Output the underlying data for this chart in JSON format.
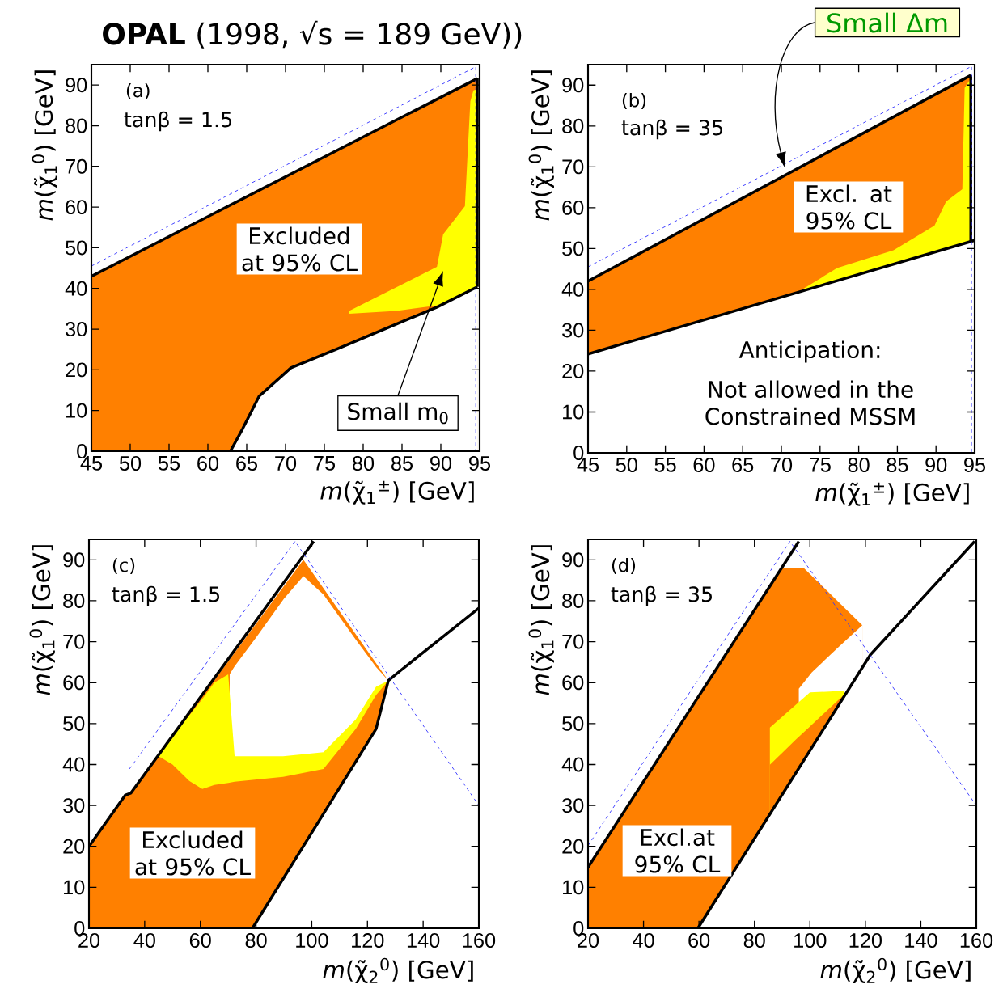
{
  "chart_data": [
    {
      "type": "area",
      "title": "**OPAL** (1998, √s = 189 GeV))",
      "xlabel": "*m*(χ̃$_{1}$$^{±}$) [GeV]",
      "ylabel": "*m*(χ̃$_{1}$$^{0}$) [GeV]",
      "xlim": [
        45,
        95
      ],
      "ylim": [
        0,
        95
      ],
      "xticks": [
        45,
        50,
        55,
        60,
        65,
        70,
        75,
        80,
        85,
        90,
        95
      ],
      "yticks": [
        0,
        10,
        20,
        30,
        40,
        50,
        60,
        70,
        80,
        90
      ],
      "series": [
        {
          "color": "#ff8000",
          "line_style": "solid",
          "x": [
            45,
            94.7
          ],
          "values": [
            43,
            91.6
          ]
        },
        {
          "color": "#ffff00",
          "x": [
            78.2,
            89.5,
            90.3,
            93.1,
            93.8,
            94.2,
            94.7
          ],
          "values": [
            34.5,
            45.3,
            53.3,
            60.2,
            86,
            88.7,
            89
          ]
        },
        {
          "color": "#ff8000",
          "x": [
            78.2,
            84.3,
            89.5,
            90.3,
            93.1,
            93.8,
            94.2,
            94.7
          ],
          "values": [
            33.8,
            34.5,
            35.8,
            36.2,
            38.5,
            39.5,
            39.8,
            40.4
          ]
        },
        {
          "color": "#ffffff",
          "line_style": "solid",
          "x": [
            62.9,
            64.5,
            66.6,
            70.7,
            77,
            83.2,
            89.5,
            94.7
          ],
          "values": [
            0,
            5.6,
            13.5,
            20.5,
            25.4,
            30.4,
            35.4,
            40.4
          ]
        },
        {
          "type": "line",
          "color": "#000000",
          "line_style": "solid",
          "x": [
            94.7,
            94.7
          ],
          "values": [
            40.4,
            91.6
          ]
        },
        {
          "type": "line",
          "color": "#3333ff",
          "line_style": "dashed",
          "x": [
            45,
            94.5,
            94.5
          ],
          "values": [
            45.5,
            94.5,
            0
          ]
        }
      ],
      "annotations": [
        "(a)",
        "tanβ = 1.5",
        "Excluded at 95% CL",
        "Small m$_{0}$"
      ]
    },
    {
      "type": "area",
      "xlabel": "*m*(χ̃$_{1}$$^{±}$) [GeV]",
      "ylabel": "*m*(χ̃$_{1}$$^{0}$) [GeV]",
      "xlim": [
        45,
        95
      ],
      "ylim": [
        0,
        95
      ],
      "xticks": [
        45,
        50,
        55,
        60,
        65,
        70,
        75,
        80,
        85,
        90,
        95
      ],
      "yticks": [
        0,
        10,
        20,
        30,
        40,
        50,
        60,
        70,
        80,
        90
      ],
      "series": [
        {
          "color": "#ff8000",
          "line_style": "solid",
          "x": [
            45,
            94.5
          ],
          "values": [
            42,
            92.4
          ]
        },
        {
          "color": "#ffff00",
          "x": [
            72,
            77.2,
            84.5,
            89.8,
            91.3,
            93.4,
            93.7,
            94.5
          ],
          "values": [
            39.2,
            45.2,
            49.6,
            55.6,
            61.5,
            64.5,
            89.3,
            91.7
          ]
        },
        {
          "color": "#ffffff",
          "line_style": "solid",
          "x": [
            45,
            95
          ],
          "values": [
            24.2,
            52
          ]
        },
        {
          "type": "line",
          "color": "#000000",
          "line_style": "solid",
          "x": [
            94.5,
            94.5
          ],
          "values": [
            51.7,
            92.4
          ]
        },
        {
          "type": "line",
          "color": "#3333ff",
          "line_style": "dashed",
          "x": [
            45,
            94.6,
            94.6
          ],
          "values": [
            45.5,
            94.6,
            0
          ]
        }
      ],
      "annotations": [
        "(b)",
        "tanβ = 35",
        "Excl. at 95% CL",
        "Anticipation:",
        "Not allowed in the Constrained MSSM",
        "Small Δm"
      ]
    },
    {
      "type": "area",
      "xlabel": "*m*(χ̃$_{2}$$^{0}$) [GeV]",
      "ylabel": "*m*(χ̃$_{1}$$^{0}$) [GeV]",
      "xlim": [
        20,
        160
      ],
      "ylim": [
        0,
        95
      ],
      "xticks": [
        20,
        40,
        60,
        80,
        100,
        120,
        140,
        160
      ],
      "yticks": [
        0,
        10,
        20,
        30,
        40,
        50,
        60,
        70,
        80,
        90
      ],
      "series": [
        {
          "color": "#ff8000",
          "x": [
            20,
            33,
            35,
            97,
            127.5
          ],
          "values": [
            20,
            32.5,
            33,
            90,
            60.5
          ]
        },
        {
          "color": "#ffffff",
          "x": [
            70.5,
            72.3,
            80,
            90,
            97,
            104.2,
            115.8,
            123.1,
            127.5
          ],
          "values": [
            62,
            64,
            71,
            80.5,
            86,
            81.5,
            70.5,
            63.8,
            60.5
          ]
        },
        {
          "color": "#ffff00",
          "x": [
            45,
            50,
            56,
            60.7,
            65,
            70,
            72.3,
            75.2,
            89.7,
            104.2,
            115.8,
            123.1,
            127.5
          ],
          "values": [
            42,
            47,
            52,
            56,
            60,
            62,
            42,
            42,
            42,
            43,
            51,
            59,
            60.5
          ]
        },
        {
          "color": "#ff8000",
          "x": [
            45,
            50,
            56,
            60.7,
            65,
            70,
            72.3,
            75.2,
            89.7,
            104.2,
            115.8,
            123.1,
            127.5
          ],
          "values": [
            42,
            40,
            36,
            34,
            35,
            35.5,
            35.8,
            36,
            37,
            38.9,
            48.7,
            57,
            60.5
          ]
        },
        {
          "color": "#ffffff",
          "line_style": "solid",
          "x": [
            78.7,
            123.1,
            127.5,
            131.8,
            160
          ],
          "values": [
            0,
            48.7,
            60.5,
            62.9,
            78.2
          ]
        },
        {
          "type": "line",
          "color": "#000000",
          "line_style": "solid",
          "x": [
            20,
            33,
            35,
            100.7
          ],
          "values": [
            20,
            32.5,
            33,
            94.5
          ]
        },
        {
          "type": "line",
          "color": "#3333ff",
          "line_style": "dashed",
          "x": [
            34.5,
            94,
            160
          ],
          "values": [
            38.9,
            94.5,
            30
          ]
        }
      ],
      "annotations": [
        "(c)",
        "tanβ = 1.5",
        "Excluded at 95% CL"
      ]
    },
    {
      "type": "area",
      "xlabel": "*m*(χ̃$_{2}$$^{0}$) [GeV]",
      "ylabel": "*m*(χ̃$_{1}$$^{0}$) [GeV]",
      "xlim": [
        20,
        160
      ],
      "ylim": [
        0,
        95
      ],
      "xticks": [
        20,
        40,
        60,
        80,
        100,
        120,
        140,
        160
      ],
      "yticks": [
        0,
        10,
        20,
        30,
        40,
        50,
        60,
        70,
        80,
        90
      ],
      "series": [
        {
          "color": "#ff8000",
          "x": [
            20,
            59.6,
            89.8,
            97.8,
            118.9
          ],
          "values": [
            14.9,
            56.4,
            88,
            88,
            74
          ]
        },
        {
          "color": "#ffffff",
          "x": [
            96,
            100.7,
            110,
            118.9
          ],
          "values": [
            58.5,
            62.5,
            68.5,
            74
          ]
        },
        {
          "color": "#ffff00",
          "x": [
            85.5,
            100,
            112.5
          ],
          "values": [
            49,
            57.6,
            58
          ]
        },
        {
          "color": "#ff8000",
          "x": [
            85.5,
            87,
            90.4,
            94.8,
            100,
            112.5
          ],
          "values": [
            39.9,
            40.9,
            43.1,
            46,
            49.3,
            57.2
          ]
        },
        {
          "color": "#ffffff",
          "line_style": "solid",
          "x": [
            59.6,
            121.8,
            159.4
          ],
          "values": [
            0,
            66.8,
            94.5
          ]
        },
        {
          "type": "line",
          "color": "#000000",
          "line_style": "solid",
          "x": [
            20,
            96
          ],
          "values": [
            14.9,
            94.5
          ]
        },
        {
          "type": "line",
          "color": "#3333ff",
          "line_style": "dashed",
          "x": [
            20,
            92.8,
            160
          ],
          "values": [
            20.2,
            94.5,
            30
          ]
        }
      ],
      "annotations": [
        "(d)",
        "tanβ = 35",
        "Excl.at 95% CL"
      ]
    }
  ]
}
